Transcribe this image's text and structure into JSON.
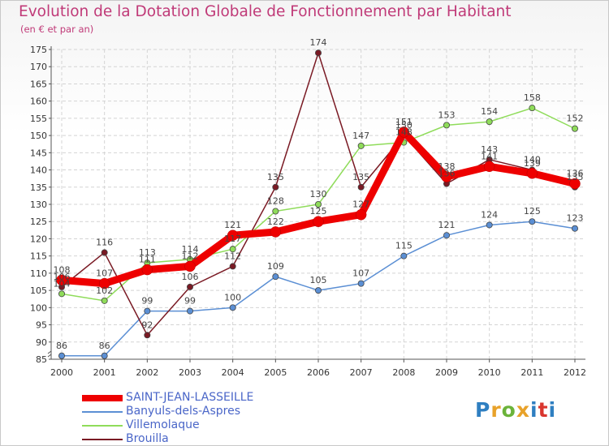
{
  "header": {
    "title": "Evolution de la Dotation Globale de Fonctionnement par Habitant",
    "subtitle": "(en € et par an)"
  },
  "logo": {
    "text": "Proxiti",
    "colors": [
      "#2f7fc1",
      "#e8a22a",
      "#6bb33a",
      "#e8a22a",
      "#2f7fc1",
      "#d9362f",
      "#2f7fc1"
    ]
  },
  "chart_data": {
    "type": "line",
    "x": [
      "2000",
      "2001",
      "2002",
      "2003",
      "2004",
      "2005",
      "2006",
      "2007",
      "2008",
      "2009",
      "2010",
      "2011",
      "2012"
    ],
    "ylim": [
      85,
      175
    ],
    "yticks": [
      85,
      90,
      95,
      100,
      105,
      110,
      115,
      120,
      125,
      130,
      135,
      140,
      145,
      150,
      155,
      160,
      165,
      170,
      175
    ],
    "grid": true,
    "legend_position": "bottom-left",
    "series": [
      {
        "name": "SAINT-JEAN-LASSEILLE",
        "color": "#ee0000",
        "values": [
          108,
          107,
          111,
          112,
          121,
          122,
          125,
          127,
          151,
          138,
          141,
          139,
          136
        ],
        "labels": [
          "108",
          "107",
          "111",
          "112",
          "121",
          "122",
          "125",
          "127",
          "151",
          "138",
          "141",
          "139",
          "136"
        ]
      },
      {
        "name": "Banyuls-dels-Aspres",
        "color": "#5b8fd4",
        "values": [
          86,
          86,
          99,
          99,
          100,
          109,
          105,
          107,
          115,
          121,
          124,
          125,
          123
        ],
        "labels": [
          "86",
          "86",
          "99",
          "99",
          "100",
          "109",
          "105",
          "107",
          "115",
          "121",
          "124",
          "125",
          "123"
        ]
      },
      {
        "name": "Villemolaque",
        "color": "#8fdc5a",
        "values": [
          104,
          102,
          113,
          114,
          117,
          128,
          130,
          147,
          148,
          153,
          154,
          158,
          152
        ],
        "labels": [
          "104",
          "102",
          "113",
          "114",
          "117",
          "128",
          "130",
          "147",
          "148",
          "153",
          "154",
          "158",
          "152"
        ]
      },
      {
        "name": "Brouilla",
        "color": "#7a1a24",
        "values": [
          106,
          116,
          92,
          106,
          112,
          135,
          174,
          135,
          150,
          136,
          143,
          140,
          135
        ],
        "labels": [
          "106",
          "116",
          "92",
          "106",
          "112",
          "135",
          "174",
          "135",
          "150",
          "136",
          "143",
          "140",
          "135"
        ]
      }
    ]
  }
}
